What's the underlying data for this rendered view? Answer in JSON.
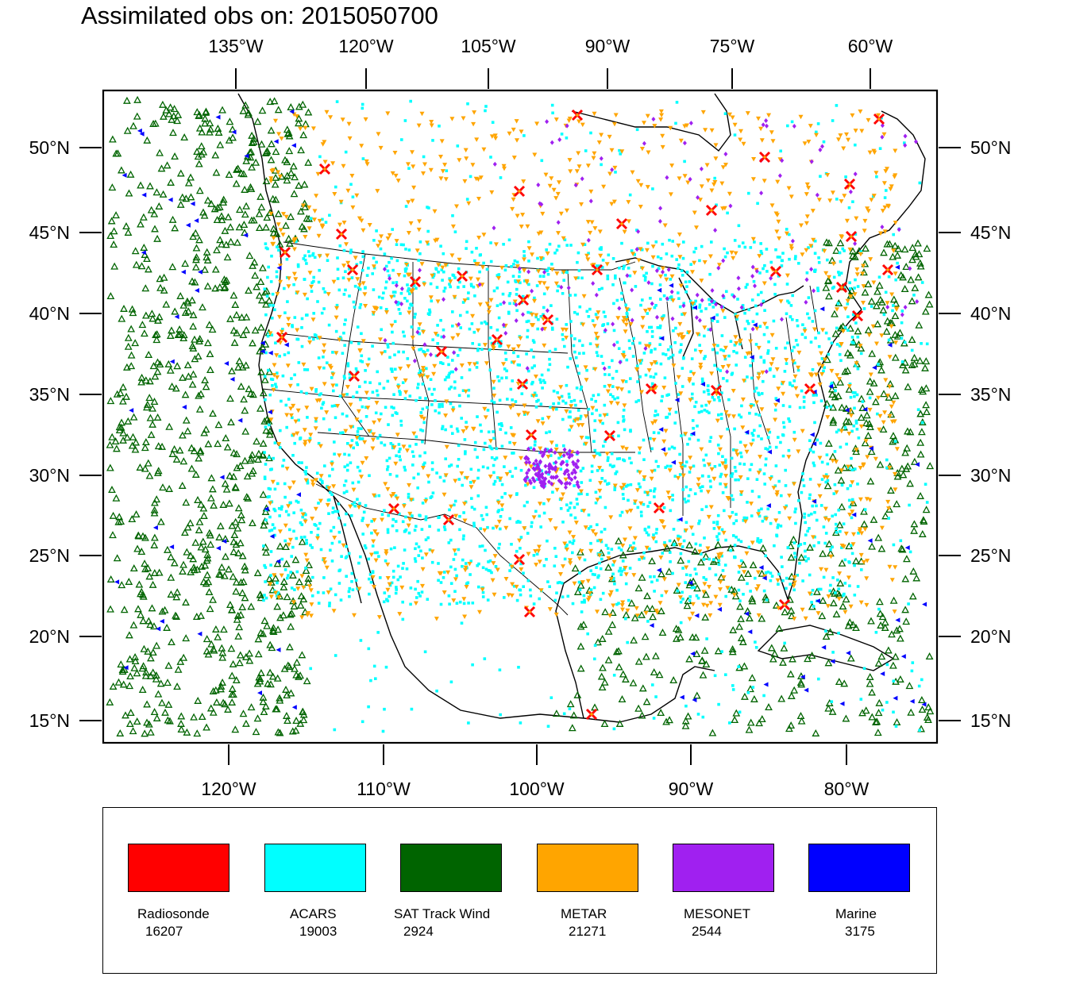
{
  "title": "Assimilated obs on: 2015050700",
  "top_lon_labels": [
    "135°W",
    "120°W",
    "105°W",
    "90°W",
    "75°W",
    "60°W"
  ],
  "bottom_lon_labels": [
    "120°W",
    "110°W",
    "100°W",
    "90°W",
    "80°W"
  ],
  "lat_labels": [
    "50°N",
    "45°N",
    "40°N",
    "35°N",
    "30°N",
    "25°N",
    "20°N",
    "15°N"
  ],
  "legend": [
    {
      "name": "Radiosonde",
      "count": "16207",
      "color": "#ff0000",
      "marker": "x-cross"
    },
    {
      "name": "ACARS",
      "count": "19003",
      "color": "#00ffff",
      "marker": "square-dot"
    },
    {
      "name": "SAT Track Wind",
      "count": "2924",
      "color": "#006400",
      "marker": "triangle-outline"
    },
    {
      "name": "METAR",
      "count": "21271",
      "color": "#ffa500",
      "marker": "triangle-down"
    },
    {
      "name": "MESONET",
      "count": "2544",
      "color": "#a020f0",
      "marker": "diamond"
    },
    {
      "name": "Marine",
      "count": "3175",
      "color": "#0000ff",
      "marker": "triangle-left"
    }
  ]
}
